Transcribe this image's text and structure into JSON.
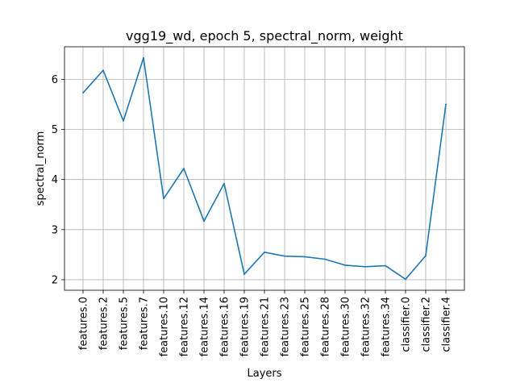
{
  "chart_data": {
    "type": "line",
    "title": "vgg19_wd, epoch 5, spectral_norm, weight",
    "xlabel": "Layers",
    "ylabel": "spectral_norm",
    "categories": [
      "features.0",
      "features.2",
      "features.5",
      "features.7",
      "features.10",
      "features.12",
      "features.14",
      "features.16",
      "features.19",
      "features.21",
      "features.23",
      "features.25",
      "features.28",
      "features.30",
      "features.32",
      "features.34",
      "classifier.0",
      "classifier.2",
      "classifier.4"
    ],
    "series": [
      {
        "values": [
          5.73,
          6.18,
          5.17,
          6.43,
          3.62,
          4.22,
          3.17,
          3.92,
          2.11,
          2.55,
          2.47,
          2.46,
          2.41,
          2.29,
          2.26,
          2.28,
          2.01,
          2.48,
          5.5
        ],
        "color": "#1f77b4"
      }
    ],
    "yticks": [
      2,
      3,
      4,
      5,
      6
    ],
    "ylim": [
      1.79,
      6.65
    ],
    "grid": true
  }
}
